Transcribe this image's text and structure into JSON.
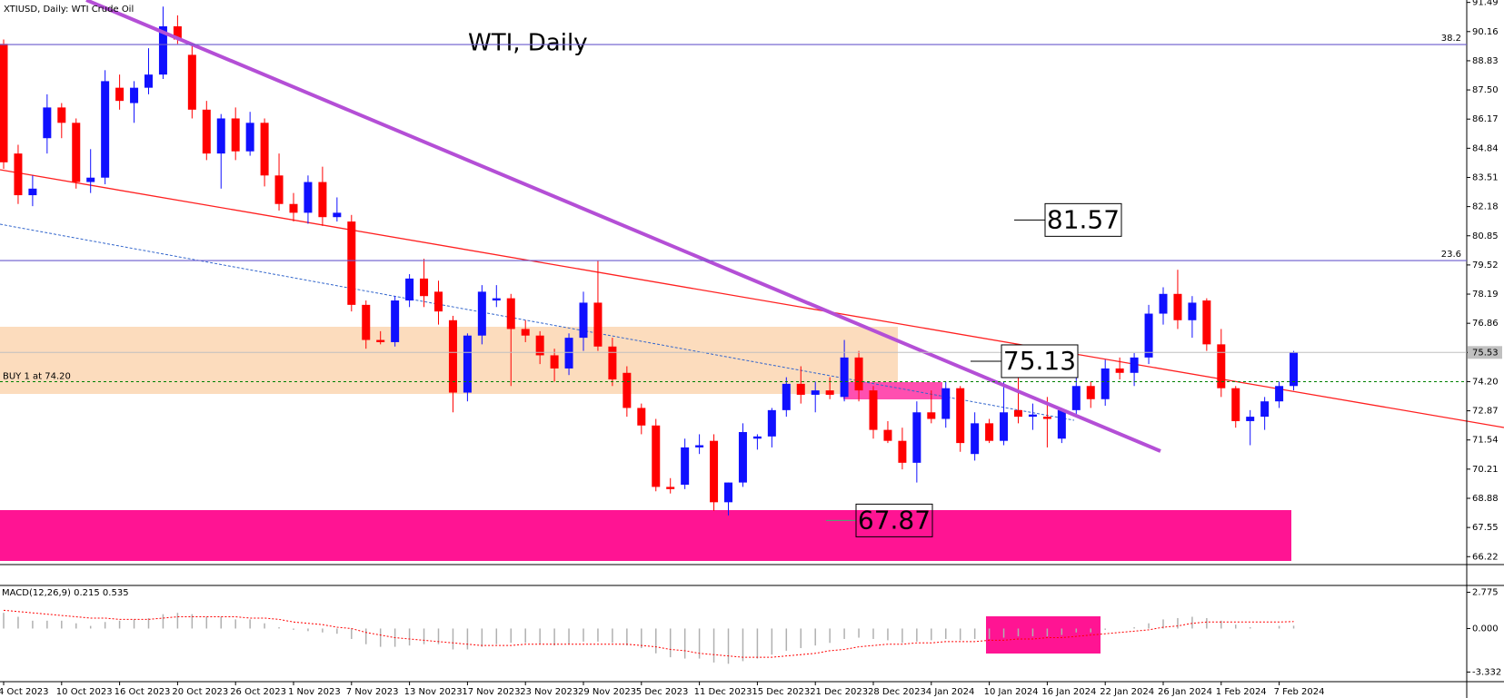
{
  "chart_data": {
    "type": "candlestick",
    "title": "WTI, Daily",
    "symbol_label": "XTIUSD, Daily: WTI Crude Oil",
    "categories": [
      "4 Oct 2023",
      null,
      null,
      null,
      "10 Oct 2023",
      null,
      null,
      null,
      "16 Oct 2023",
      null,
      null,
      null,
      "20 Oct 2023",
      null,
      null,
      null,
      "26 Oct 2023",
      null,
      null,
      null,
      "1 Nov 2023",
      null,
      null,
      null,
      "7 Nov 2023",
      null,
      null,
      null,
      "13 Nov 2023",
      null,
      null,
      null,
      "17 Nov 2023",
      null,
      null,
      null,
      "23 Nov 2023",
      null,
      null,
      null,
      "29 Nov 2023",
      null,
      null,
      null,
      "5 Dec 2023",
      null,
      null,
      null,
      "11 Dec 2023",
      null,
      null,
      null,
      "15 Dec 2023",
      null,
      null,
      null,
      "21 Dec 2023",
      null,
      null,
      null,
      "28 Dec 2023",
      null,
      null,
      null,
      "4 Jan 2024",
      null,
      null,
      null,
      "10 Jan 2024",
      null,
      null,
      null,
      "16 Jan 2024",
      null,
      null,
      null,
      "22 Jan 2024",
      null,
      null,
      null,
      "26 Jan 2024",
      null,
      null,
      null,
      "1 Feb 2024",
      null,
      null,
      null,
      "7 Feb 2024",
      null
    ],
    "open": [
      89.6,
      84.6,
      82.7,
      85.3,
      86.7,
      86.0,
      83.3,
      83.5,
      87.6,
      86.9,
      87.6,
      88.2,
      90.4,
      89.1,
      86.6,
      84.6,
      86.2,
      84.7,
      86.0,
      83.6,
      82.3,
      81.9,
      83.3,
      81.7,
      81.5,
      77.7,
      76.1,
      76.0,
      77.9,
      78.9,
      78.3,
      77.0,
      73.7,
      76.3,
      77.9,
      78.0,
      76.6,
      76.3,
      75.4,
      74.8,
      76.2,
      77.8,
      75.8,
      74.6,
      73.0,
      72.2,
      69.4,
      69.5,
      71.2,
      71.5,
      68.7,
      69.6,
      71.6,
      71.7,
      72.9,
      74.1,
      73.6,
      73.8,
      73.5,
      75.3,
      73.8,
      72.0,
      71.5,
      70.5,
      72.8,
      72.5,
      73.9,
      70.9,
      72.3,
      71.5,
      72.9,
      72.6,
      72.6,
      71.6,
      72.9,
      74.0,
      73.4,
      74.8,
      74.6,
      75.3,
      77.3,
      78.2,
      77.0,
      77.9,
      75.9,
      73.9,
      72.4,
      72.6,
      73.3,
      74.0
    ],
    "high": [
      89.8,
      85.0,
      83.6,
      87.3,
      86.9,
      86.2,
      84.8,
      88.4,
      88.2,
      87.9,
      89.4,
      91.3,
      90.9,
      89.6,
      87.0,
      86.4,
      86.7,
      86.5,
      86.2,
      84.6,
      82.8,
      83.6,
      84.0,
      82.6,
      81.8,
      77.9,
      76.5,
      78.1,
      79.1,
      79.8,
      78.8,
      77.2,
      76.4,
      78.6,
      78.6,
      78.2,
      77.0,
      76.5,
      75.7,
      76.4,
      78.3,
      79.7,
      76.2,
      74.9,
      73.2,
      72.5,
      69.8,
      71.6,
      71.8,
      71.8,
      69.6,
      72.3,
      71.8,
      73.0,
      74.4,
      74.9,
      74.2,
      74.4,
      76.1,
      75.6,
      74.0,
      72.4,
      72.1,
      73.3,
      73.8,
      74.2,
      74.0,
      72.8,
      72.5,
      74.2,
      75.3,
      73.2,
      73.5,
      73.0,
      74.4,
      74.2,
      75.2,
      75.3,
      75.5,
      77.7,
      78.5,
      79.3,
      78.1,
      78.0,
      76.6,
      74.0,
      72.9,
      73.5,
      74.2,
      75.6
    ],
    "low": [
      83.9,
      82.3,
      82.2,
      84.6,
      85.3,
      83.0,
      82.8,
      83.2,
      86.6,
      86.0,
      87.3,
      88.0,
      89.6,
      86.2,
      84.3,
      83.0,
      84.3,
      84.5,
      83.1,
      82.0,
      81.5,
      81.4,
      81.3,
      81.5,
      77.4,
      75.7,
      75.9,
      75.8,
      77.6,
      77.6,
      76.8,
      72.8,
      73.3,
      75.9,
      77.6,
      74.0,
      76.0,
      75.0,
      74.2,
      74.5,
      75.6,
      75.6,
      74.0,
      72.6,
      71.8,
      69.2,
      69.1,
      69.3,
      70.9,
      68.3,
      68.1,
      69.4,
      71.1,
      71.2,
      72.6,
      73.2,
      72.8,
      73.4,
      73.3,
      73.3,
      71.6,
      71.4,
      70.2,
      69.6,
      72.3,
      72.1,
      71.0,
      70.6,
      71.4,
      71.3,
      72.3,
      72.0,
      71.2,
      71.4,
      72.6,
      73.0,
      73.1,
      74.3,
      74.0,
      75.0,
      76.8,
      76.6,
      76.2,
      75.6,
      73.5,
      72.1,
      71.3,
      72.0,
      73.0,
      73.8
    ],
    "close": [
      84.2,
      82.7,
      83.0,
      86.7,
      86.0,
      83.3,
      83.5,
      87.9,
      87.0,
      87.6,
      88.2,
      90.4,
      89.8,
      86.6,
      84.6,
      86.2,
      84.7,
      86.0,
      83.6,
      82.3,
      81.9,
      83.3,
      81.7,
      81.9,
      77.7,
      76.1,
      76.0,
      77.9,
      78.9,
      78.1,
      77.4,
      73.7,
      76.3,
      78.3,
      78.0,
      76.6,
      76.3,
      75.4,
      74.8,
      76.2,
      77.8,
      75.8,
      74.3,
      73.0,
      72.2,
      69.4,
      69.3,
      71.2,
      71.3,
      68.7,
      69.6,
      71.9,
      71.7,
      72.9,
      74.1,
      73.6,
      73.8,
      73.6,
      75.3,
      73.8,
      72.0,
      71.5,
      70.5,
      72.8,
      72.5,
      73.9,
      71.4,
      72.3,
      71.5,
      72.8,
      72.6,
      72.7,
      72.5,
      72.9,
      74.0,
      73.4,
      74.8,
      74.6,
      75.3,
      77.3,
      78.2,
      77.0,
      77.8,
      75.9,
      73.9,
      72.4,
      72.6,
      73.3,
      74.0,
      75.53
    ],
    "bull_color": "#1010ff",
    "bear_color": "#ff0000",
    "ylim": [
      65.9,
      91.6
    ],
    "yticks": [
      91.49,
      90.16,
      88.83,
      {
        "value": 87.5,
        "label": "87.50"
      },
      86.17,
      84.84,
      83.51,
      82.18,
      80.85,
      79.52,
      78.19,
      76.86,
      75.53,
      {
        "value": 74.2,
        "label": "74.20"
      },
      72.87,
      71.54,
      70.21,
      68.88,
      67.55,
      66.22
    ],
    "levels": [
      {
        "value": 81.57,
        "color": "#000000"
      },
      {
        "value": 75.13,
        "color": "#000000"
      },
      {
        "value": 67.87,
        "color": "#3cb371"
      }
    ],
    "fib": [
      {
        "label": "38.2",
        "value": 89.57
      },
      {
        "label": "23.6",
        "value": 79.72
      }
    ],
    "trade": {
      "label": "BUY 1 at 74.20",
      "value": 74.2
    },
    "macd": {
      "title": "MACD(12,26,9) 0.215 0.535",
      "values": [
        1.2,
        0.9,
        0.6,
        0.6,
        0.6,
        0.4,
        0.2,
        0.5,
        0.6,
        0.7,
        0.8,
        1.1,
        1.2,
        1.1,
        0.9,
        0.9,
        0.7,
        0.7,
        0.4,
        0.1,
        -0.1,
        -0.2,
        -0.3,
        -0.4,
        -0.8,
        -1.2,
        -1.4,
        -1.4,
        -1.3,
        -1.2,
        -1.2,
        -1.6,
        -1.6,
        -1.4,
        -1.2,
        -1.1,
        -1.1,
        -1.2,
        -1.3,
        -1.2,
        -1.0,
        -1.0,
        -1.1,
        -1.3,
        -1.5,
        -1.9,
        -2.2,
        -2.3,
        -2.3,
        -2.6,
        -2.7,
        -2.5,
        -2.3,
        -2.0,
        -1.7,
        -1.5,
        -1.3,
        -1.1,
        -0.8,
        -0.7,
        -0.8,
        -0.9,
        -1.1,
        -1.0,
        -0.9,
        -0.8,
        -0.9,
        -0.8,
        -0.8,
        -0.7,
        -0.6,
        -0.6,
        -0.6,
        -0.5,
        -0.3,
        -0.3,
        -0.1,
        0.0,
        0.1,
        0.4,
        0.7,
        0.8,
        0.9,
        0.8,
        0.6,
        0.3,
        0.1,
        0.0,
        0.2,
        0.215
      ],
      "signal": [
        1.4,
        1.3,
        1.2,
        1.1,
        1.0,
        0.9,
        0.8,
        0.8,
        0.7,
        0.7,
        0.7,
        0.8,
        0.9,
        0.9,
        0.9,
        0.9,
        0.9,
        0.8,
        0.8,
        0.7,
        0.5,
        0.4,
        0.3,
        0.1,
        0.0,
        -0.3,
        -0.5,
        -0.7,
        -0.8,
        -0.9,
        -1.0,
        -1.1,
        -1.2,
        -1.3,
        -1.3,
        -1.3,
        -1.2,
        -1.2,
        -1.2,
        -1.2,
        -1.2,
        -1.2,
        -1.2,
        -1.2,
        -1.3,
        -1.4,
        -1.6,
        -1.7,
        -1.9,
        -2.0,
        -2.1,
        -2.2,
        -2.2,
        -2.2,
        -2.1,
        -2.0,
        -1.9,
        -1.7,
        -1.6,
        -1.4,
        -1.3,
        -1.2,
        -1.2,
        -1.1,
        -1.1,
        -1.0,
        -1.0,
        -1.0,
        -0.9,
        -0.9,
        -0.8,
        -0.8,
        -0.7,
        -0.7,
        -0.6,
        -0.5,
        -0.4,
        -0.3,
        -0.2,
        -0.1,
        0.1,
        0.2,
        0.4,
        0.5,
        0.5,
        0.5,
        0.5,
        0.5,
        0.5,
        0.535
      ],
      "ylim": [
        -4.0,
        3.3
      ],
      "yticks": [
        2.775,
        {
          "value": 0,
          "label": "0.000"
        },
        -3.332
      ]
    }
  }
}
